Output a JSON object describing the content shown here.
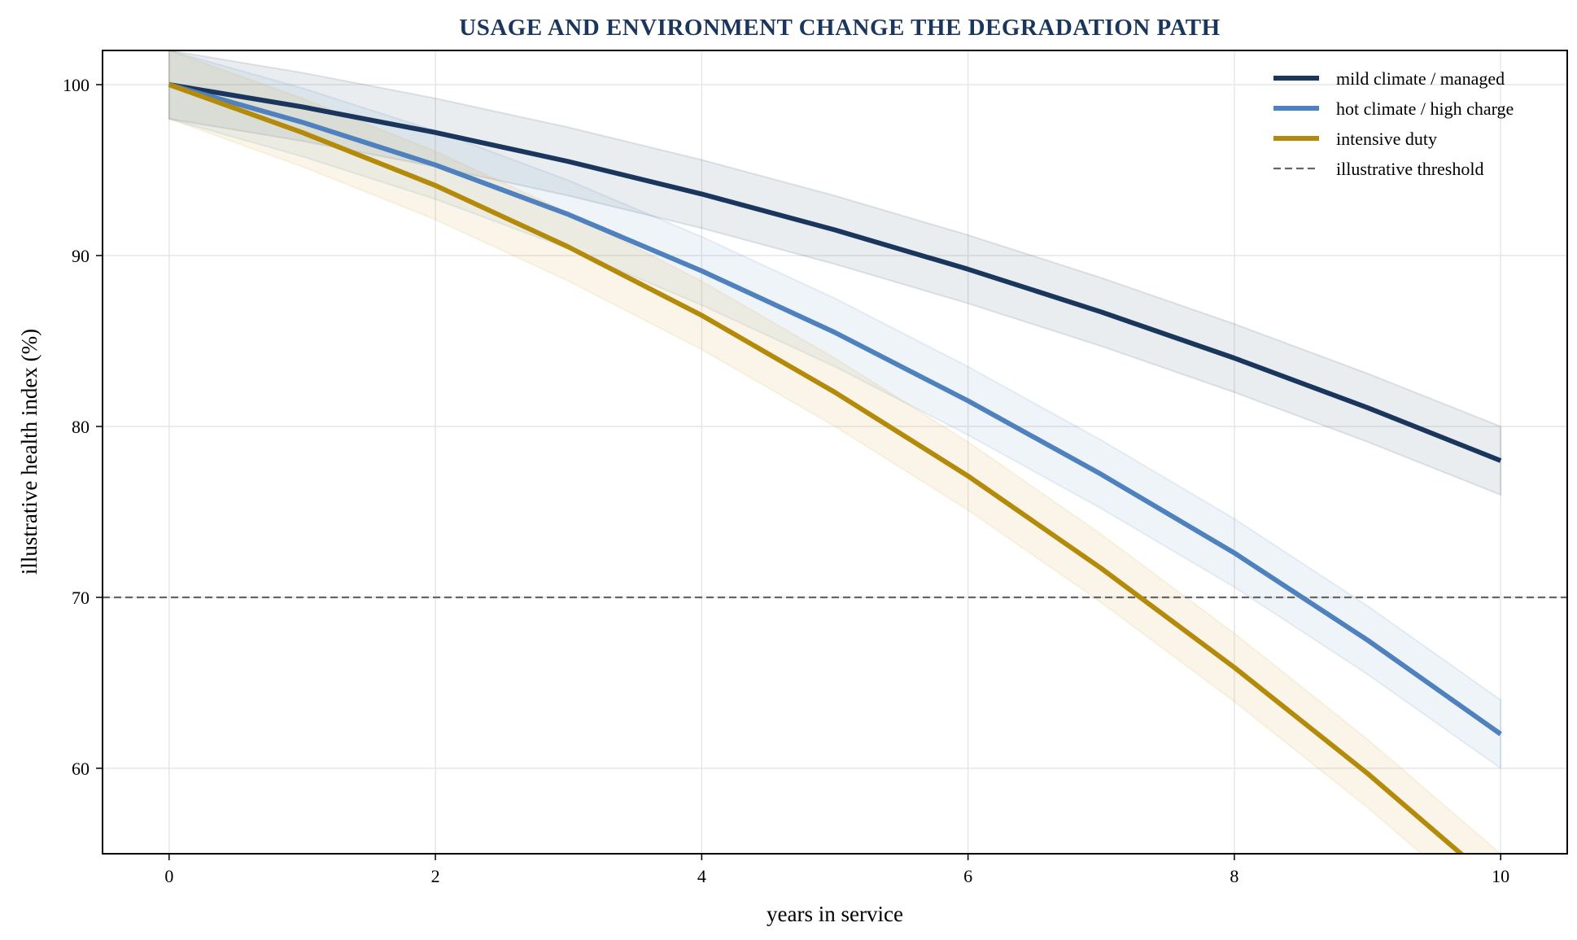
{
  "chart_data": {
    "type": "line",
    "title": "USAGE AND ENVIRONMENT CHANGE THE DEGRADATION PATH",
    "xlabel": "years in service",
    "ylabel": "illustrative health index (%)",
    "xlim": [
      -0.5,
      10.5
    ],
    "ylim": [
      55,
      102
    ],
    "xticks": [
      0,
      2,
      4,
      6,
      8,
      10
    ],
    "yticks": [
      60,
      70,
      80,
      90,
      100
    ],
    "grid": true,
    "legend_position": "top-right",
    "x": [
      0,
      1,
      2,
      3,
      4,
      5,
      6,
      7,
      8,
      9,
      10
    ],
    "series": [
      {
        "name": "mild climate / managed",
        "color": "#1b365d",
        "band_color": "#1b365d",
        "band_opacity": 0.09,
        "band_halfwidth": 2,
        "values": [
          100,
          98.7,
          97.2,
          95.5,
          93.6,
          91.5,
          89.2,
          86.7,
          84.0,
          81.1,
          78.0
        ]
      },
      {
        "name": "hot climate / high charge",
        "color": "#4e81bd",
        "band_color": "#4e81bd",
        "band_opacity": 0.09,
        "band_halfwidth": 2,
        "values": [
          100,
          97.8,
          95.3,
          92.4,
          89.1,
          85.5,
          81.5,
          77.2,
          72.6,
          67.5,
          62.0
        ]
      },
      {
        "name": "intensive duty",
        "color": "#b38a09",
        "band_color": "#d9b04a",
        "band_opacity": 0.13,
        "band_halfwidth": 2,
        "values": [
          100,
          97.2,
          94.1,
          90.5,
          86.5,
          82.0,
          77.1,
          71.7,
          65.9,
          59.7,
          53.0
        ]
      }
    ],
    "threshold": {
      "name": "illustrative threshold",
      "value": 70,
      "color": "#666666",
      "style": "dashed"
    }
  }
}
